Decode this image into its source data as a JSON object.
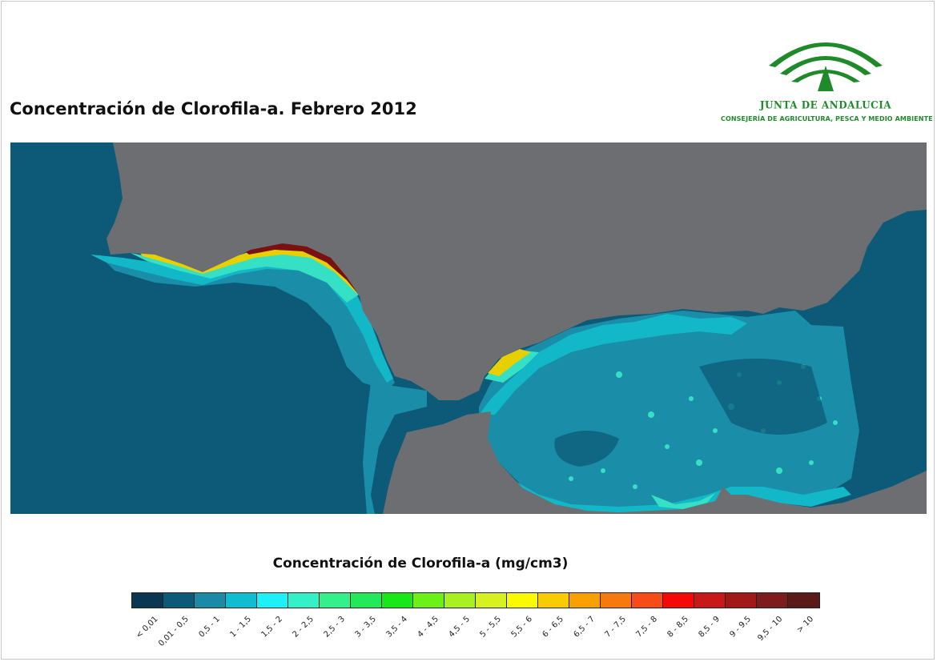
{
  "title": "Concentración de Clorofila-a. Febrero 2012",
  "logo": {
    "brand": "JUNTA DE ANDALUCIA",
    "department": "CONSEJERÍA DE AGRICULTURA, PESCA Y MEDIO AMBIENTE",
    "brand_color": "#1f8a2a"
  },
  "map_colors": {
    "land": "#6d6e72",
    "ocean_low": "#0c5a78",
    "ocean_mid": "#1a8ea8",
    "coastal_mid": "#12b8c8",
    "coastal_high": "#36e0c4",
    "coastal_peak": "#e8d000",
    "coastal_max": "#7a1010"
  },
  "legend": {
    "title": "Concentración de Clorofila-a (mg/cm3)",
    "classes": [
      {
        "label": "< 0,01",
        "color": "#0a3652"
      },
      {
        "label": "0,01 - 0,5",
        "color": "#0d5a78"
      },
      {
        "label": "0,5 - 1",
        "color": "#1b8aa6"
      },
      {
        "label": "1 - 1,5",
        "color": "#10bcd0"
      },
      {
        "label": "1,5 - 2",
        "color": "#1ef0f8"
      },
      {
        "label": "2 - 2,5",
        "color": "#34f0c6"
      },
      {
        "label": "2,5 - 3",
        "color": "#34f08a"
      },
      {
        "label": "3 - 3,5",
        "color": "#22e85a"
      },
      {
        "label": "3,5 - 4",
        "color": "#18e818"
      },
      {
        "label": "4 - 4,5",
        "color": "#6cf018"
      },
      {
        "label": "4,5 - 5",
        "color": "#a8f020"
      },
      {
        "label": "5 - 5,5",
        "color": "#d6f020"
      },
      {
        "label": "5,5 - 6",
        "color": "#fafa00"
      },
      {
        "label": "6 - 6,5",
        "color": "#f8cc00"
      },
      {
        "label": "6,5 - 7",
        "color": "#f8a000"
      },
      {
        "label": "7 - 7,5",
        "color": "#f87810"
      },
      {
        "label": "7,5 - 8",
        "color": "#f84c18"
      },
      {
        "label": "8 - 8,5",
        "color": "#f40808"
      },
      {
        "label": "8,5 - 9",
        "color": "#c81818"
      },
      {
        "label": "9 - 9,5",
        "color": "#a01818"
      },
      {
        "label": "9,5 - 10",
        "color": "#7c1c1c"
      },
      {
        "label": "> 10",
        "color": "#5a1a1a"
      }
    ]
  }
}
